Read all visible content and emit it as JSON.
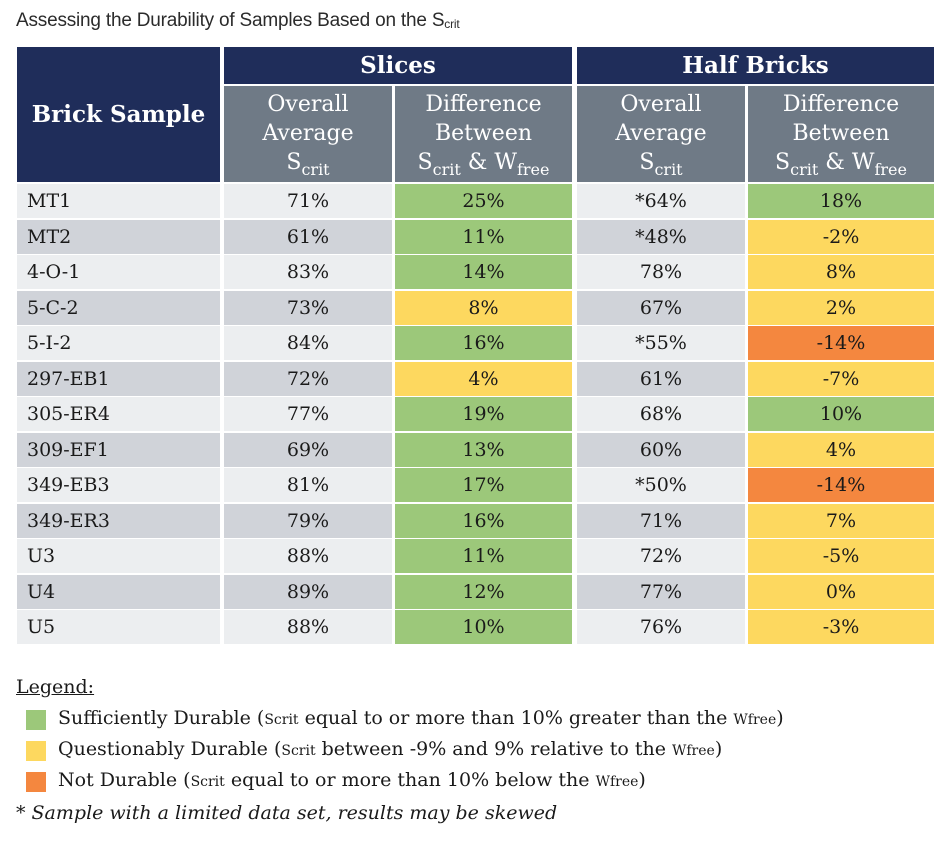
{
  "title": {
    "main": "Assessing the Durability of Samples Based on the S",
    "sub": "crit"
  },
  "header": {
    "brick": "Brick Sample",
    "slices": "Slices",
    "half_bricks": "Half Bricks",
    "overall_l1": "Overall",
    "overall_l2": "Average",
    "overall_s": "S",
    "overall_sub": "crit",
    "diff_l1": "Difference",
    "diff_l2": "Between",
    "diff_s": "S",
    "diff_sub": "crit",
    "diff_amp": " & W",
    "diff_sub2": "free"
  },
  "colors": {
    "green": "#9cc87a",
    "yellow": "#fdd85f",
    "orange": "#f4873f",
    "row_light": "#eceef0",
    "row_dark": "#d0d3d9",
    "navy": "#1f2d5a",
    "slate": "#6f7a86"
  },
  "rows": [
    {
      "sample": "MT1",
      "s_avg": "71%",
      "s_diff": "25%",
      "s_color": "green",
      "h_avg": "*64%",
      "h_diff": "18%",
      "h_color": "green"
    },
    {
      "sample": "MT2",
      "s_avg": "61%",
      "s_diff": "11%",
      "s_color": "green",
      "h_avg": "*48%",
      "h_diff": "-2%",
      "h_color": "yellow"
    },
    {
      "sample": "4-O-1",
      "s_avg": "83%",
      "s_diff": "14%",
      "s_color": "green",
      "h_avg": "78%",
      "h_diff": "8%",
      "h_color": "yellow"
    },
    {
      "sample": "5-C-2",
      "s_avg": "73%",
      "s_diff": "8%",
      "s_color": "yellow",
      "h_avg": "67%",
      "h_diff": "2%",
      "h_color": "yellow"
    },
    {
      "sample": "5-I-2",
      "s_avg": "84%",
      "s_diff": "16%",
      "s_color": "green",
      "h_avg": "*55%",
      "h_diff": "-14%",
      "h_color": "orange"
    },
    {
      "sample": "297-EB1",
      "s_avg": "72%",
      "s_diff": "4%",
      "s_color": "yellow",
      "h_avg": "61%",
      "h_diff": "-7%",
      "h_color": "yellow"
    },
    {
      "sample": "305-ER4",
      "s_avg": "77%",
      "s_diff": "19%",
      "s_color": "green",
      "h_avg": "68%",
      "h_diff": "10%",
      "h_color": "green"
    },
    {
      "sample": "309-EF1",
      "s_avg": "69%",
      "s_diff": "13%",
      "s_color": "green",
      "h_avg": "60%",
      "h_diff": "4%",
      "h_color": "yellow"
    },
    {
      "sample": "349-EB3",
      "s_avg": "81%",
      "s_diff": "17%",
      "s_color": "green",
      "h_avg": "*50%",
      "h_diff": "-14%",
      "h_color": "orange"
    },
    {
      "sample": "349-ER3",
      "s_avg": "79%",
      "s_diff": "16%",
      "s_color": "green",
      "h_avg": "71%",
      "h_diff": "7%",
      "h_color": "yellow"
    },
    {
      "sample": "U3",
      "s_avg": "88%",
      "s_diff": "11%",
      "s_color": "green",
      "h_avg": "72%",
      "h_diff": "-5%",
      "h_color": "yellow"
    },
    {
      "sample": "U4",
      "s_avg": "89%",
      "s_diff": "12%",
      "s_color": "green",
      "h_avg": "77%",
      "h_diff": "0%",
      "h_color": "yellow"
    },
    {
      "sample": "U5",
      "s_avg": "88%",
      "s_diff": "10%",
      "s_color": "green",
      "h_avg": "76%",
      "h_diff": "-3%",
      "h_color": "yellow"
    }
  ],
  "legend": {
    "title": "Legend:",
    "items": [
      {
        "color": "green",
        "a": "Sufficiently Durable (",
        "b": "Scrit",
        "c": " equal to or more than 10% greater than the ",
        "d": "Wfree",
        "e": ")"
      },
      {
        "color": "yellow",
        "a": "Questionably Durable (",
        "b": "Scrit",
        "c": " between -9% and 9% relative to the ",
        "d": "Wfree",
        "e": ")"
      },
      {
        "color": "orange",
        "a": "Not Durable (",
        "b": "Scrit",
        "c": " equal to or more than 10% below the ",
        "d": "Wfree",
        "e": ")"
      }
    ]
  },
  "note": "* Sample with a limited data set, results may be skewed"
}
